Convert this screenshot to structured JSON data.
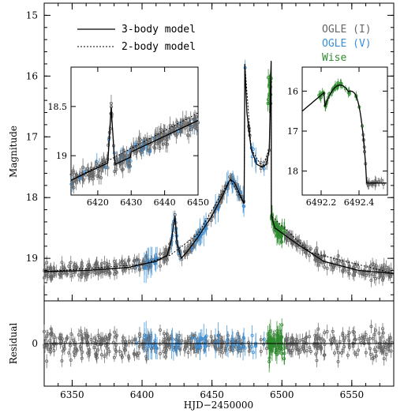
{
  "chart_data": {
    "type": "scatter",
    "xlabel": "HJD−2450000",
    "ylabel_main": "Magnitude",
    "ylabel_resid": "Residual",
    "xlim": [
      6330,
      6580
    ],
    "ylim_main": [
      19.7,
      14.8
    ],
    "ylim_resid": [
      -0.5,
      0.5
    ],
    "x_ticks": [
      6350,
      6400,
      6450,
      6500,
      6550
    ],
    "y_ticks_main": [
      15,
      16,
      17,
      18,
      19
    ],
    "y_ticks_resid": [
      0
    ],
    "legend": {
      "models": [
        "3-body model",
        "2-body model"
      ],
      "datasets": [
        {
          "label": "OGLE (I)",
          "color": "#666666"
        },
        {
          "label": "OGLE (V)",
          "color": "#3a8fd8"
        },
        {
          "label": "Wise",
          "color": "#2e8b2e"
        }
      ]
    },
    "model_3body": [
      [
        6330,
        19.22
      ],
      [
        6360,
        19.2
      ],
      [
        6390,
        19.15
      ],
      [
        6400,
        19.1
      ],
      [
        6410,
        19.05
      ],
      [
        6418,
        18.95
      ],
      [
        6421,
        18.7
      ],
      [
        6423.5,
        18.3
      ],
      [
        6425,
        18.75
      ],
      [
        6428,
        19.0
      ],
      [
        6432,
        18.9
      ],
      [
        6440,
        18.65
      ],
      [
        6450,
        18.3
      ],
      [
        6458,
        17.95
      ],
      [
        6463,
        17.7
      ],
      [
        6466,
        17.75
      ],
      [
        6470,
        17.95
      ],
      [
        6473,
        18.1
      ],
      [
        6473.5,
        15.8
      ],
      [
        6475,
        16.6
      ],
      [
        6478,
        17.2
      ],
      [
        6482,
        17.45
      ],
      [
        6486,
        17.5
      ],
      [
        6489,
        17.45
      ],
      [
        6491,
        17.2
      ],
      [
        6492.2,
        15.9
      ],
      [
        6492.3,
        15.75
      ],
      [
        6492.45,
        18.3
      ],
      [
        6495,
        18.5
      ],
      [
        6510,
        18.75
      ],
      [
        6530,
        19.05
      ],
      [
        6555,
        19.2
      ],
      [
        6580,
        19.25
      ]
    ],
    "model_2body": [
      [
        6330,
        19.22
      ],
      [
        6400,
        19.1
      ],
      [
        6420,
        18.95
      ],
      [
        6440,
        18.6
      ],
      [
        6463,
        17.7
      ],
      [
        6473,
        18.1
      ],
      [
        6473.5,
        15.8
      ],
      [
        6478,
        17.2
      ],
      [
        6486,
        17.5
      ],
      [
        6491,
        17.2
      ],
      [
        6492.3,
        15.75
      ],
      [
        6492.45,
        18.3
      ],
      [
        6520,
        18.9
      ],
      [
        6580,
        19.25
      ]
    ],
    "inset1": {
      "xlim": [
        6412,
        6450
      ],
      "ylim": [
        19.4,
        18.1
      ],
      "x_ticks": [
        6420,
        6430,
        6440,
        6450
      ],
      "y_ticks": [
        18.5,
        19
      ]
    },
    "inset2": {
      "xlim": [
        6492.1,
        6492.55
      ],
      "ylim": [
        18.6,
        15.4
      ],
      "x_ticks": [
        6492.2,
        6492.4
      ],
      "y_ticks": [
        16,
        17,
        18
      ]
    }
  }
}
